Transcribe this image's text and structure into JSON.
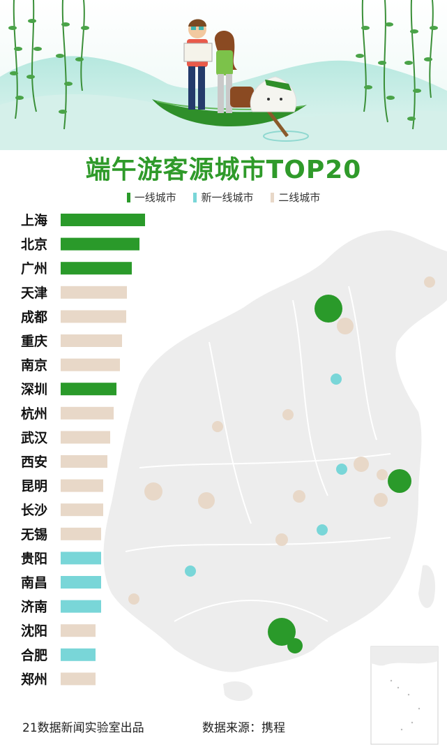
{
  "title": "端午游客源城市TOP20",
  "legend": [
    {
      "label": "一线城市",
      "color": "#2a9a2a"
    },
    {
      "label": "新一线城市",
      "color": "#79d6d8"
    },
    {
      "label": "二线城市",
      "color": "#e8d8c8"
    }
  ],
  "chart_data": {
    "type": "bar",
    "orientation": "horizontal",
    "title": "端午游客源城市TOP20",
    "categories": [
      "上海",
      "北京",
      "广州",
      "天津",
      "成都",
      "重庆",
      "南京",
      "深圳",
      "杭州",
      "武汉",
      "西安",
      "昆明",
      "长沙",
      "无锡",
      "贵阳",
      "南昌",
      "济南",
      "沈阳",
      "合肥",
      "郑州"
    ],
    "values": [
      121,
      113,
      102,
      95,
      94,
      88,
      85,
      80,
      76,
      71,
      67,
      61,
      61,
      58,
      58,
      58,
      58,
      50,
      50,
      50
    ],
    "tiers": [
      "一线城市",
      "一线城市",
      "一线城市",
      "二线城市",
      "二线城市",
      "二线城市",
      "二线城市",
      "一线城市",
      "二线城市",
      "二线城市",
      "二线城市",
      "二线城市",
      "二线城市",
      "二线城市",
      "新一线城市",
      "新一线城市",
      "新一线城市",
      "二线城市",
      "新一线城市",
      "二线城市"
    ],
    "xlim": [
      0,
      130
    ],
    "grid": false,
    "legend_position": "top-center"
  },
  "map": {
    "background": "map of China (light gray)",
    "markers": [
      {
        "tier": "一线城市",
        "size": "large"
      },
      {
        "tier": "一线城市",
        "size": "large"
      },
      {
        "tier": "一线城市",
        "size": "large"
      },
      {
        "tier": "一线城市",
        "size": "small"
      },
      {
        "tier": "新一线城市",
        "size": "small"
      },
      {
        "tier": "新一线城市",
        "size": "small"
      },
      {
        "tier": "新一线城市",
        "size": "small"
      },
      {
        "tier": "新一线城市",
        "size": "small"
      },
      {
        "tier": "二线城市",
        "size": "medium"
      },
      {
        "tier": "二线城市",
        "size": "medium"
      },
      {
        "tier": "二线城市",
        "size": "medium"
      }
    ]
  },
  "footer": {
    "credit": "21数据新闻实验室出品",
    "source": "数据来源：携程"
  }
}
